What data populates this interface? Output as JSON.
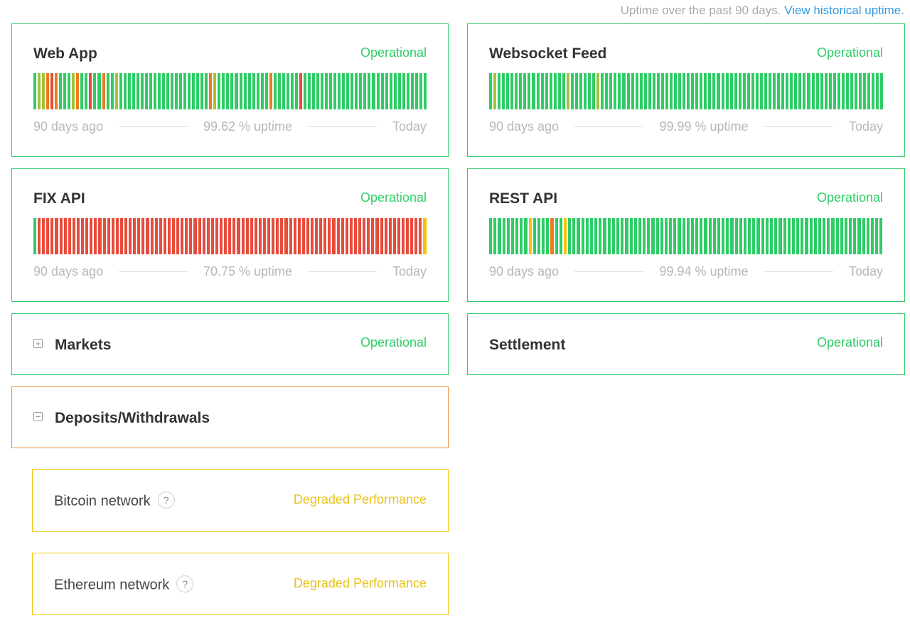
{
  "colors": {
    "operational": "#2fcc66",
    "degraded": "#f1c40f",
    "partial": "#e67e22",
    "major": "#e74c3c",
    "link": "#3498db",
    "lime": "#a3c23a"
  },
  "header": {
    "uptime_note": "Uptime over the past 90 days.",
    "historical_link": "View historical uptime."
  },
  "components": [
    {
      "name": "Web App",
      "status": "Operational",
      "start_label": "90 days ago",
      "uptime": "99.62 % uptime",
      "end_label": "Today",
      "bars": "GLLOROGGGLOGGRGGOGGLGGGGGGGGGGGGGGGGGGGGGOLGGGGGGGGGGGGOGGGGGGRGGGGGGGGGGGGGGGGGGGGGGGGGGGGG"
    },
    {
      "name": "Websocket Feed",
      "status": "Operational",
      "start_label": "90 days ago",
      "uptime": "99.99 % uptime",
      "end_label": "Today",
      "bars": "GLGGGGGGGGGGGGGGGGLGGGGGGLGGGGGGGGGGGGGGGGGGGGGGGGGGGGGGGGGGGGGGGGGGGGGGGGGGGGGGGGGGGGGGGGGG"
    },
    {
      "name": "FIX API",
      "status": "Operational",
      "start_label": "90 days ago",
      "uptime": "70.75 % uptime",
      "end_label": "Today",
      "bars": "GRRRRRRRRRRRRRRRRRRRRRRRRRRRRRRRRRRRRRRRRRRRRRRRRRRRRRRRRRRRRRRRRRRRRRRRRRRRRRRRRRRRRRRRRRY"
    },
    {
      "name": "REST API",
      "status": "Operational",
      "start_label": "90 days ago",
      "uptime": "99.94 % uptime",
      "end_label": "Today",
      "bars": "GGGGGGGGGYGGGGOGGYGGGGGGGGGGGGGGGGGGGGGGGGGGGGGGGGGGGGGGGGGGGGGGGGGGGGGGGGGGGGGGGGGGGGGGGG"
    }
  ],
  "groups": [
    {
      "name": "Markets",
      "toggle": "+",
      "status": "Operational"
    },
    {
      "name": "Settlement",
      "status": "Operational"
    },
    {
      "name": "Deposits/Withdrawals",
      "toggle": "−"
    }
  ],
  "subcomponents": [
    {
      "name": "Bitcoin network",
      "help": "?",
      "status": "Degraded Performance"
    },
    {
      "name": "Ethereum network",
      "help": "?",
      "status": "Degraded Performance"
    }
  ]
}
